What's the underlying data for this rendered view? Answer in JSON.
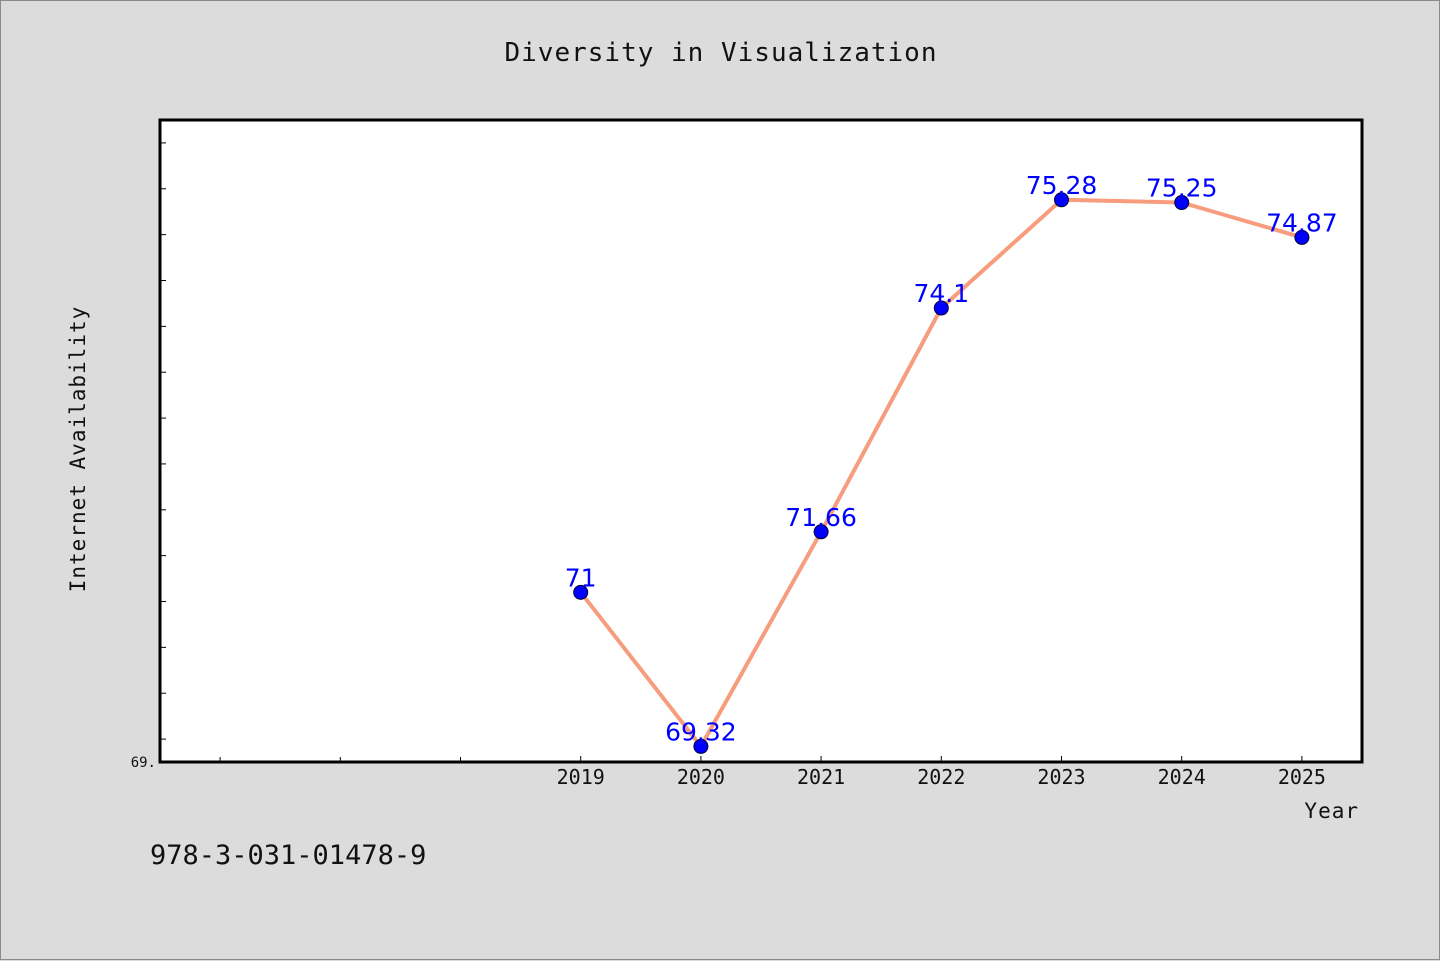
{
  "colors": {
    "background": "#dcdcdc",
    "plot_background": "#ffffff",
    "line": "#f79d7d",
    "marker": "#0000ff",
    "data_label": "#0000ff",
    "axis": "#000000"
  },
  "footer_text": "978-3-031-01478-9",
  "chart_data": {
    "type": "line",
    "title": "Diversity in Visualization",
    "xlabel": "Year",
    "ylabel": "Internet Availability",
    "x": [
      2019,
      2020,
      2021,
      2022,
      2023,
      2024,
      2025
    ],
    "series": [
      {
        "values": [
          71,
          69.32,
          71.66,
          74.1,
          75.28,
          75.25,
          74.87
        ]
      }
    ],
    "data_labels": [
      "71",
      "69.32",
      "71.66",
      "74.1",
      "75.28",
      "75.25",
      "74.87"
    ],
    "xlim": [
      2015.5,
      2025.5
    ],
    "ylim": [
      69.15,
      76.15
    ],
    "y_min_label": "69.",
    "grid": false,
    "legend": "none"
  }
}
